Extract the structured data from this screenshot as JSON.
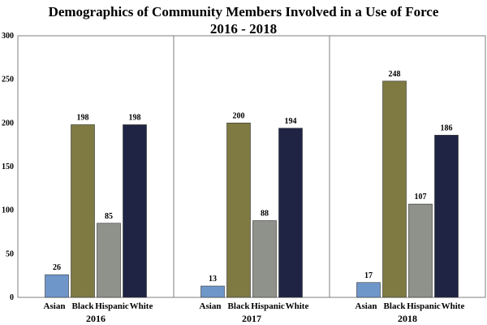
{
  "chart_data": {
    "type": "bar",
    "title_line1": "Demographics of Community Members Involved in a Use of Force",
    "title_line2": "2016 - 2018",
    "groups": [
      "2016",
      "2017",
      "2018"
    ],
    "categories": [
      "Asian",
      "Black",
      "Hispanic",
      "White"
    ],
    "colors": [
      "#6f96c9",
      "#7f7a42",
      "#8f928a",
      "#1f2444"
    ],
    "values": [
      [
        26,
        198,
        85,
        198
      ],
      [
        13,
        200,
        88,
        194
      ],
      [
        17,
        248,
        107,
        186
      ]
    ],
    "ylim": [
      0,
      300
    ],
    "yticks": [
      0,
      50,
      100,
      150,
      200,
      250,
      300
    ],
    "grid": false,
    "group_dividers": true
  }
}
